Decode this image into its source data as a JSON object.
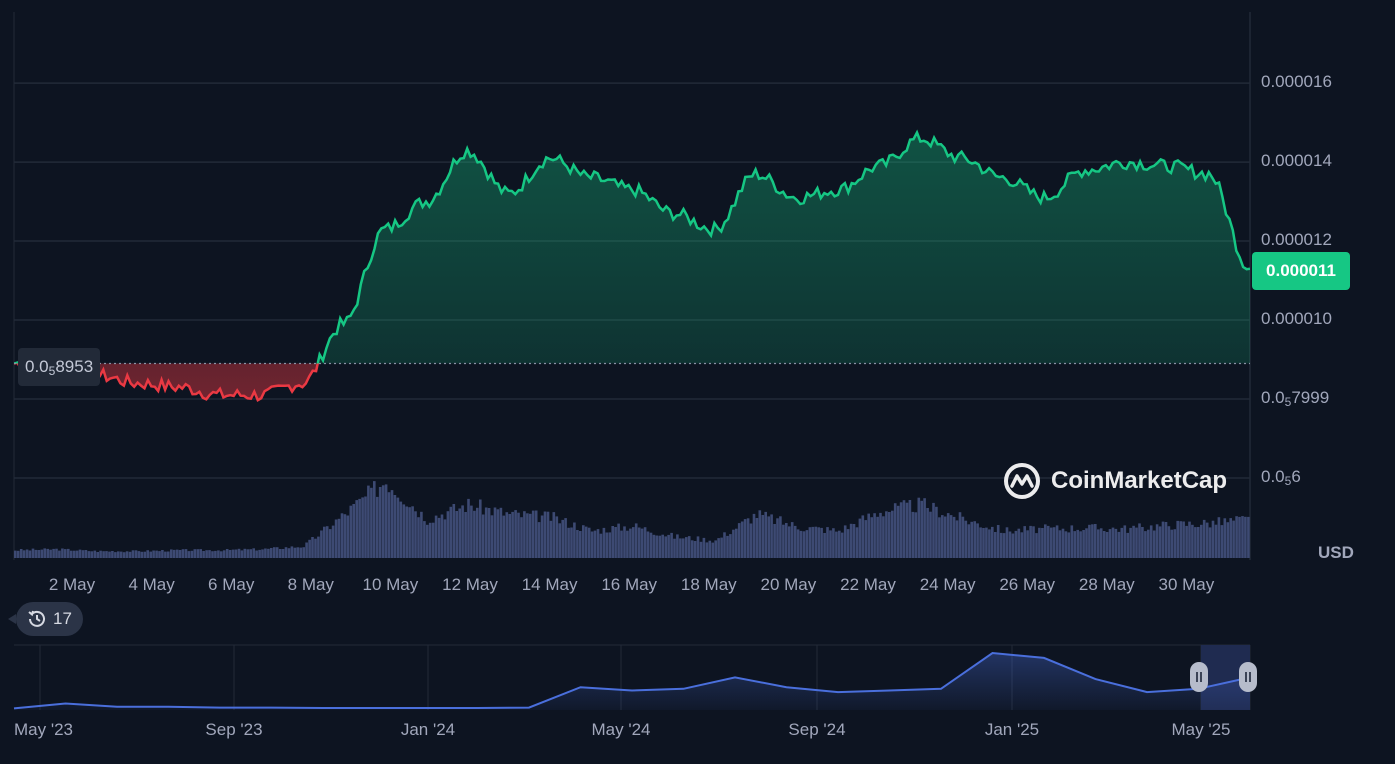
{
  "currency_label": "USD",
  "current_price_label": "0.000011",
  "baseline_label": {
    "prefix": "0.0",
    "sub": "5",
    "rest": "8953"
  },
  "history_badge": {
    "icon": "history-clock-icon",
    "count": "17"
  },
  "watermark": {
    "text": "CoinMarketCap",
    "icon": "coinmarketcap-logo-icon"
  },
  "colors": {
    "background": "#0d1421",
    "up": "#16c784",
    "down": "#ea3943",
    "volume": "#3d4a73",
    "overview": "#4a6fdc",
    "grid": "#222a38"
  },
  "y_ticks": [
    {
      "prefix": "0.000016",
      "sub": "",
      "rest": "",
      "value": 1.6e-05
    },
    {
      "prefix": "0.000014",
      "sub": "",
      "rest": "",
      "value": 1.4e-05
    },
    {
      "prefix": "0.000012",
      "sub": "",
      "rest": "",
      "value": 1.2e-05
    },
    {
      "prefix": "0.000010",
      "sub": "",
      "rest": "",
      "value": 1e-05
    },
    {
      "prefix": "0.0",
      "sub": "5",
      "rest": "7999",
      "value": 8e-06
    },
    {
      "prefix": "0.0",
      "sub": "5",
      "rest": "6",
      "value": 6e-06
    }
  ],
  "chart_data": [
    {
      "type": "area",
      "x_ticks": [
        "2 May",
        "4 May",
        "6 May",
        "8 May",
        "10 May",
        "12 May",
        "14 May",
        "16 May",
        "18 May",
        "20 May",
        "22 May",
        "24 May",
        "26 May",
        "28 May",
        "30 May"
      ],
      "ylim": [
        6e-06,
        1.78e-05
      ],
      "baseline": 8.9e-06,
      "current": 1.1e-05,
      "x_range": [
        "1 May",
        "1 Jun"
      ],
      "x": [
        "1 May",
        "2 May",
        "3 May",
        "4 May",
        "5 May",
        "6 May",
        "7 May",
        "8 May",
        "9 May",
        "10 May",
        "11 May",
        "12 May",
        "13 May",
        "14 May",
        "15 May",
        "16 May",
        "17 May",
        "18 May",
        "19 May",
        "20 May",
        "21 May",
        "22 May",
        "23 May",
        "24 May",
        "25 May",
        "26 May",
        "27 May",
        "28 May",
        "29 May",
        "30 May",
        "31 May"
      ],
      "series": [
        {
          "values": [
            8.9e-06,
            8.9e-06,
            8.6e-06,
            8.4e-06,
            8.3e-06,
            8.1e-06,
            8.1e-06,
            8.4e-06,
            9.9e-06,
            1.23e-05,
            1.3e-05,
            1.43e-05,
            1.32e-05,
            1.41e-05,
            1.36e-05,
            1.33e-05,
            1.27e-05,
            1.23e-05,
            1.37e-05,
            1.31e-05,
            1.33e-05,
            1.39e-05,
            1.46e-05,
            1.41e-05,
            1.36e-05,
            1.31e-05,
            1.38e-05,
            1.4e-05,
            1.39e-05,
            1.37e-05,
            1.13e-05
          ]
        }
      ]
    },
    {
      "type": "bar",
      "name_hidden": true,
      "x": [
        "1 May",
        "2 May",
        "3 May",
        "4 May",
        "5 May",
        "6 May",
        "7 May",
        "8 May",
        "9 May",
        "10 May",
        "11 May",
        "12 May",
        "13 May",
        "14 May",
        "15 May",
        "16 May",
        "17 May",
        "18 May",
        "19 May",
        "20 May",
        "21 May",
        "22 May",
        "23 May",
        "24 May",
        "25 May",
        "26 May",
        "27 May",
        "28 May",
        "29 May",
        "30 May",
        "31 May"
      ],
      "values": [
        8,
        9,
        7,
        7,
        8,
        8,
        9,
        12,
        45,
        80,
        40,
        55,
        45,
        42,
        28,
        33,
        22,
        18,
        45,
        32,
        28,
        48,
        55,
        40,
        28,
        30,
        31,
        30,
        34,
        36,
        40
      ]
    },
    {
      "type": "area",
      "x_ticks": [
        "May '23",
        "Sep '23",
        "Jan '24",
        "May '24",
        "Sep '24",
        "Jan '25",
        "May '25"
      ],
      "x": [
        "May '23",
        "Jun '23",
        "Jul '23",
        "Aug '23",
        "Sep '23",
        "Oct '23",
        "Nov '23",
        "Dec '23",
        "Jan '24",
        "Feb '24",
        "Mar '24",
        "Apr '24",
        "May '24",
        "Jun '24",
        "Jul '24",
        "Aug '24",
        "Sep '24",
        "Oct '24",
        "Nov '24",
        "Dec '24",
        "Jan '25",
        "Feb '25",
        "Mar '25",
        "Apr '25",
        "May '25"
      ],
      "values": [
        1,
        4,
        2,
        2,
        1.5,
        1.5,
        1.2,
        1.2,
        1.2,
        1.2,
        1.5,
        14,
        12,
        13,
        20,
        14,
        11,
        12,
        13,
        35,
        32,
        19,
        11,
        13,
        20
      ]
    }
  ]
}
